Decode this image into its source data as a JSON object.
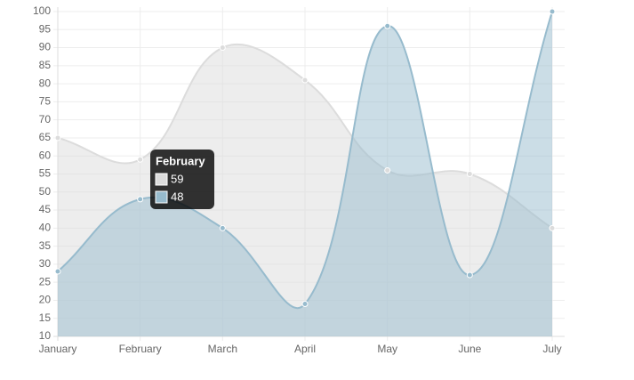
{
  "chart_data": {
    "type": "line",
    "categories": [
      "January",
      "February",
      "March",
      "April",
      "May",
      "June",
      "July"
    ],
    "series": [
      {
        "color": "#dcdcdc",
        "fill": "rgba(220,220,220,0.5)",
        "values": [
          65,
          59,
          90,
          81,
          56,
          55,
          40
        ]
      },
      {
        "color": "#97bbcd",
        "fill": "rgba(151,187,205,0.5)",
        "values": [
          28,
          48,
          40,
          19,
          96,
          27,
          100
        ]
      }
    ],
    "ylim": [
      10,
      100
    ],
    "yticks": [
      10,
      15,
      20,
      25,
      30,
      35,
      40,
      45,
      50,
      55,
      60,
      65,
      70,
      75,
      80,
      85,
      90,
      95,
      100
    ],
    "grid": true,
    "smooth": true
  }
}
